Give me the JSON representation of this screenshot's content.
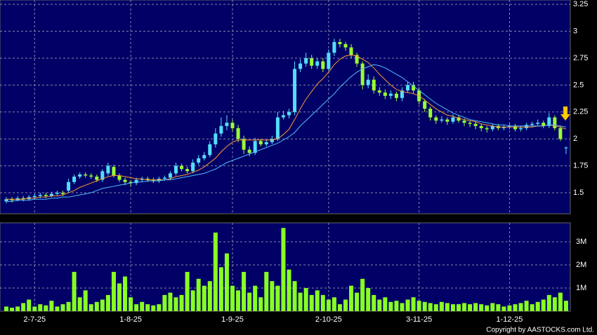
{
  "chart_data": {
    "type": "candlestick",
    "categories": [
      null,
      null,
      null,
      null,
      null,
      "2-7-25",
      null,
      null,
      null,
      null,
      null,
      null,
      null,
      null,
      null,
      null,
      null,
      null,
      null,
      null,
      null,
      null,
      "1-8-25",
      null,
      null,
      null,
      null,
      null,
      null,
      null,
      null,
      null,
      null,
      null,
      null,
      null,
      null,
      null,
      null,
      null,
      "1-9-25",
      null,
      null,
      null,
      null,
      null,
      null,
      null,
      null,
      null,
      null,
      null,
      null,
      null,
      null,
      null,
      null,
      "2-10-25",
      null,
      null,
      null,
      null,
      null,
      null,
      null,
      null,
      null,
      null,
      null,
      null,
      null,
      null,
      null,
      "3-11-25",
      null,
      null,
      null,
      null,
      null,
      null,
      null,
      null,
      null,
      null,
      null,
      null,
      null,
      null,
      null,
      "1-12-25",
      null,
      null,
      null,
      null,
      null,
      null,
      null,
      null,
      null,
      null
    ],
    "open": [
      1.42,
      1.44,
      1.43,
      1.45,
      1.44,
      1.46,
      1.47,
      1.48,
      1.47,
      1.49,
      1.5,
      1.52,
      1.6,
      1.65,
      1.67,
      1.66,
      1.65,
      1.62,
      1.68,
      1.74,
      1.66,
      1.62,
      1.6,
      1.59,
      1.62,
      1.63,
      1.62,
      1.61,
      1.63,
      1.64,
      1.68,
      1.75,
      1.72,
      1.7,
      1.78,
      1.82,
      1.85,
      1.95,
      2.05,
      2.12,
      2.15,
      2.1,
      2.0,
      1.9,
      1.87,
      1.98,
      1.95,
      1.97,
      2.0,
      2.2,
      2.22,
      2.25,
      2.65,
      2.7,
      2.75,
      2.68,
      2.72,
      2.65,
      2.8,
      2.9,
      2.88,
      2.85,
      2.78,
      2.7,
      2.5,
      2.55,
      2.45,
      2.43,
      2.4,
      2.42,
      2.38,
      2.45,
      2.5,
      2.45,
      2.35,
      2.28,
      2.2,
      2.17,
      2.18,
      2.16,
      2.2,
      2.17,
      2.15,
      2.14,
      2.12,
      2.1,
      2.09,
      2.12,
      2.1,
      2.11,
      2.12,
      2.09,
      2.1,
      2.13,
      2.14,
      2.15,
      2.12,
      2.2,
      2.1,
      1.92
    ],
    "high": [
      1.46,
      1.46,
      1.47,
      1.47,
      1.48,
      1.49,
      1.5,
      1.5,
      1.51,
      1.52,
      1.52,
      1.63,
      1.67,
      1.69,
      1.69,
      1.68,
      1.67,
      1.72,
      1.78,
      1.76,
      1.68,
      1.64,
      1.62,
      1.64,
      1.65,
      1.65,
      1.64,
      1.65,
      1.66,
      1.7,
      1.78,
      1.77,
      1.74,
      1.81,
      1.85,
      1.88,
      1.98,
      2.1,
      2.2,
      2.22,
      2.18,
      2.13,
      2.03,
      1.93,
      2.01,
      2.0,
      1.99,
      2.03,
      2.25,
      2.26,
      2.28,
      2.72,
      2.74,
      2.8,
      2.78,
      2.75,
      2.75,
      2.83,
      2.93,
      2.93,
      2.9,
      2.88,
      2.8,
      2.72,
      2.6,
      2.58,
      2.48,
      2.46,
      2.45,
      2.44,
      2.48,
      2.53,
      2.53,
      2.48,
      2.37,
      2.3,
      2.22,
      2.21,
      2.2,
      2.23,
      2.22,
      2.19,
      2.17,
      2.16,
      2.14,
      2.12,
      2.14,
      2.14,
      2.13,
      2.14,
      2.14,
      2.12,
      2.15,
      2.16,
      2.18,
      2.17,
      2.24,
      2.22,
      2.12,
      1.93
    ],
    "low": [
      1.4,
      1.41,
      1.42,
      1.42,
      1.43,
      1.44,
      1.45,
      1.45,
      1.46,
      1.47,
      1.47,
      1.5,
      1.58,
      1.63,
      1.64,
      1.63,
      1.6,
      1.6,
      1.66,
      1.64,
      1.6,
      1.57,
      1.56,
      1.57,
      1.6,
      1.6,
      1.59,
      1.59,
      1.61,
      1.62,
      1.66,
      1.7,
      1.68,
      1.68,
      1.76,
      1.8,
      1.83,
      1.92,
      2.02,
      2.08,
      2.07,
      1.97,
      1.86,
      1.84,
      1.85,
      1.93,
      1.93,
      1.95,
      1.98,
      2.18,
      2.19,
      2.22,
      2.62,
      2.67,
      2.65,
      2.65,
      2.62,
      2.63,
      2.77,
      2.85,
      2.82,
      2.75,
      2.67,
      2.46,
      2.47,
      2.42,
      2.4,
      2.37,
      2.37,
      2.35,
      2.35,
      2.43,
      2.42,
      2.32,
      2.25,
      2.17,
      2.14,
      2.15,
      2.13,
      2.14,
      2.15,
      2.12,
      2.11,
      2.09,
      2.07,
      2.06,
      2.07,
      2.08,
      2.08,
      2.09,
      2.07,
      2.07,
      2.08,
      2.11,
      2.12,
      2.1,
      2.1,
      2.08,
      1.98,
      1.86
    ],
    "close": [
      1.44,
      1.43,
      1.45,
      1.44,
      1.46,
      1.47,
      1.48,
      1.47,
      1.49,
      1.5,
      1.49,
      1.6,
      1.65,
      1.67,
      1.66,
      1.65,
      1.62,
      1.7,
      1.75,
      1.66,
      1.62,
      1.6,
      1.59,
      1.62,
      1.63,
      1.62,
      1.61,
      1.63,
      1.64,
      1.68,
      1.75,
      1.72,
      1.7,
      1.78,
      1.82,
      1.85,
      1.95,
      2.05,
      2.12,
      2.15,
      2.1,
      2.0,
      1.9,
      1.87,
      1.98,
      1.95,
      1.97,
      2.0,
      2.2,
      2.22,
      2.25,
      2.65,
      2.7,
      2.75,
      2.68,
      2.72,
      2.65,
      2.8,
      2.9,
      2.88,
      2.85,
      2.78,
      2.7,
      2.5,
      2.55,
      2.45,
      2.43,
      2.4,
      2.42,
      2.38,
      2.45,
      2.5,
      2.45,
      2.35,
      2.28,
      2.2,
      2.17,
      2.18,
      2.16,
      2.2,
      2.17,
      2.15,
      2.14,
      2.12,
      2.1,
      2.09,
      2.12,
      2.1,
      2.11,
      2.12,
      2.09,
      2.1,
      2.13,
      2.14,
      2.15,
      2.12,
      2.2,
      2.1,
      2.0,
      1.92
    ],
    "up_color": "#55ddff",
    "down_color": "#99ff33",
    "lines": [
      {
        "color": "#ff9933",
        "values": [
          1.44,
          1.44,
          1.44,
          1.44,
          1.45,
          1.45,
          1.46,
          1.46,
          1.47,
          1.47,
          1.48,
          1.5,
          1.52,
          1.55,
          1.57,
          1.59,
          1.61,
          1.63,
          1.65,
          1.66,
          1.66,
          1.65,
          1.64,
          1.63,
          1.63,
          1.62,
          1.62,
          1.62,
          1.62,
          1.63,
          1.65,
          1.66,
          1.67,
          1.69,
          1.71,
          1.74,
          1.78,
          1.82,
          1.88,
          1.93,
          1.97,
          1.99,
          1.99,
          1.99,
          1.99,
          1.99,
          1.99,
          1.99,
          2.0,
          2.04,
          2.09,
          2.18,
          2.28,
          2.37,
          2.44,
          2.51,
          2.56,
          2.62,
          2.69,
          2.74,
          2.77,
          2.78,
          2.77,
          2.74,
          2.71,
          2.66,
          2.6,
          2.55,
          2.5,
          2.46,
          2.44,
          2.43,
          2.42,
          2.4,
          2.36,
          2.32,
          2.28,
          2.25,
          2.22,
          2.21,
          2.19,
          2.18,
          2.17,
          2.16,
          2.14,
          2.13,
          2.12,
          2.11,
          2.11,
          2.11,
          2.11,
          2.11,
          2.11,
          2.11,
          2.12,
          2.12,
          2.13,
          2.12,
          2.11,
          2.09
        ]
      },
      {
        "color": "#55bbff",
        "values": [
          1.42,
          1.42,
          1.43,
          1.43,
          1.43,
          1.44,
          1.44,
          1.44,
          1.45,
          1.45,
          1.46,
          1.46,
          1.47,
          1.48,
          1.49,
          1.5,
          1.52,
          1.54,
          1.55,
          1.56,
          1.57,
          1.58,
          1.59,
          1.6,
          1.6,
          1.61,
          1.61,
          1.61,
          1.62,
          1.62,
          1.63,
          1.64,
          1.65,
          1.66,
          1.67,
          1.68,
          1.7,
          1.72,
          1.75,
          1.78,
          1.8,
          1.82,
          1.84,
          1.86,
          1.88,
          1.9,
          1.92,
          1.94,
          1.96,
          1.99,
          2.02,
          2.06,
          2.12,
          2.17,
          2.22,
          2.27,
          2.32,
          2.37,
          2.42,
          2.48,
          2.53,
          2.58,
          2.62,
          2.65,
          2.67,
          2.69,
          2.68,
          2.66,
          2.63,
          2.6,
          2.57,
          2.53,
          2.49,
          2.45,
          2.41,
          2.37,
          2.33,
          2.3,
          2.27,
          2.24,
          2.22,
          2.2,
          2.18,
          2.17,
          2.16,
          2.15,
          2.14,
          2.13,
          2.13,
          2.12,
          2.12,
          2.12,
          2.12,
          2.12,
          2.12,
          2.12,
          2.13,
          2.13,
          2.12,
          2.11
        ]
      }
    ],
    "ylim": [
      1.305,
      3.29
    ],
    "yticks": [
      1.5,
      1.75,
      2,
      2.25,
      2.5,
      2.75,
      3,
      3.25
    ],
    "grid": true,
    "volume": {
      "color": "#88ff22",
      "ylim": [
        0,
        3820000
      ],
      "yticks": [
        {
          "value": 1000000,
          "label": "1M"
        },
        {
          "value": 2000000,
          "label": "2M"
        },
        {
          "value": 3000000,
          "label": "3M"
        }
      ],
      "values": [
        200000,
        150000,
        200000,
        350000,
        500000,
        200000,
        300000,
        250000,
        450000,
        200000,
        300000,
        400000,
        1700000,
        600000,
        900000,
        300000,
        400000,
        500000,
        700000,
        1700000,
        1200000,
        1500000,
        600000,
        300000,
        400000,
        300000,
        250000,
        300000,
        700000,
        800000,
        600000,
        700000,
        1700000,
        900000,
        1400000,
        1100000,
        1300000,
        3400000,
        1900000,
        2500000,
        1100000,
        900000,
        1700000,
        800000,
        1100000,
        600000,
        1700000,
        1300000,
        1100000,
        3600000,
        1800000,
        1300000,
        800000,
        1000000,
        700000,
        900000,
        700000,
        500000,
        600000,
        300000,
        500000,
        1100000,
        800000,
        1400000,
        1000000,
        700000,
        500000,
        600000,
        400000,
        450000,
        350000,
        500000,
        600000,
        450000,
        400000,
        350000,
        300000,
        400000,
        350000,
        300000,
        300000,
        350000,
        300000,
        350000,
        300000,
        250000,
        350000,
        300000,
        200000,
        250000,
        300000,
        350000,
        450000,
        300000,
        400000,
        500000,
        700000,
        600000,
        800000,
        450000
      ]
    },
    "copyright": "Copyright by AASTOCKS.com Ltd."
  }
}
